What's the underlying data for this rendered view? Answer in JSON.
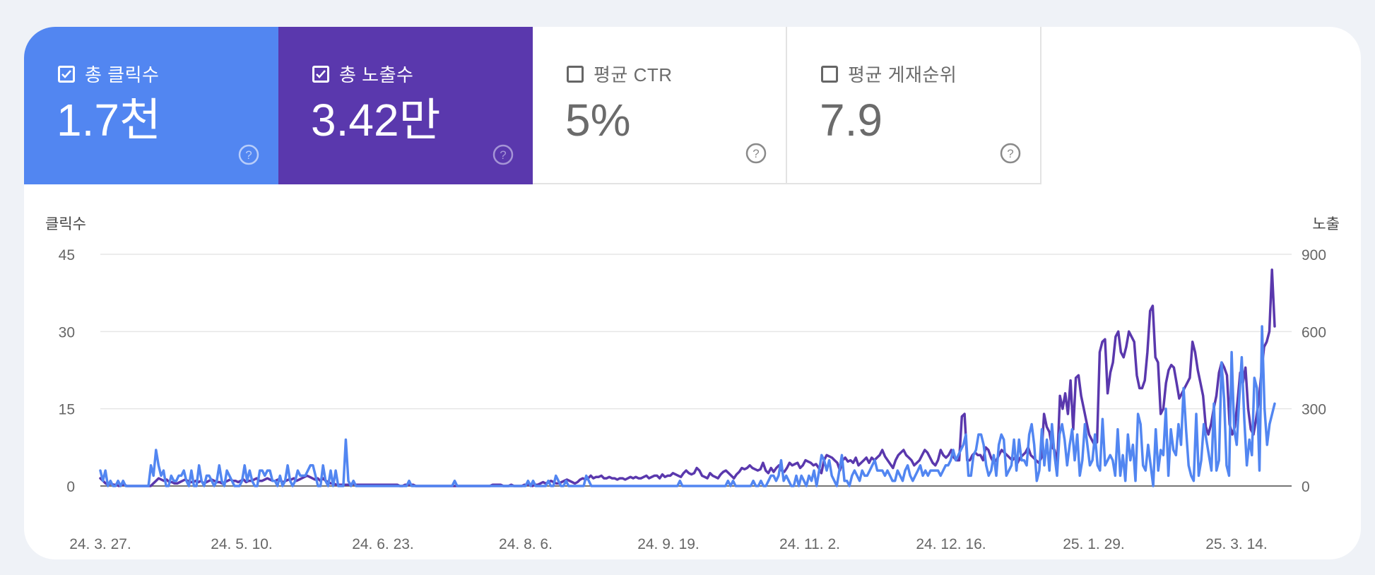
{
  "metrics": [
    {
      "label": "총 클릭수",
      "value": "1.7천",
      "checked": true,
      "color": "#5286f1"
    },
    {
      "label": "총 노출수",
      "value": "3.42만",
      "checked": true,
      "color": "#5a38ad"
    },
    {
      "label": "평균 CTR",
      "value": "5%",
      "checked": false,
      "color": "#ffffff"
    },
    {
      "label": "평균 게재순위",
      "value": "7.9",
      "checked": false,
      "color": "#ffffff"
    }
  ],
  "chart_data": {
    "type": "line",
    "ylabel_left": "클릭수",
    "ylabel_right": "노출",
    "y_left_ticks": [
      "0",
      "15",
      "30",
      "45"
    ],
    "y_right_ticks": [
      "0",
      "300",
      "600",
      "900"
    ],
    "ylim_left": [
      0,
      45
    ],
    "ylim_right": [
      0,
      900
    ],
    "x_tick_labels": [
      "24. 3. 27.",
      "24. 5. 10.",
      "24. 6. 23.",
      "24. 8. 6.",
      "24. 9. 19.",
      "24. 11. 2.",
      "24. 12. 16.",
      "25. 1. 29.",
      "25. 3. 14."
    ],
    "x_range": [
      "24. 3. 27.",
      "25. 3. 23."
    ],
    "grid": true,
    "series": [
      {
        "axis": "right",
        "color": "#5a38ad",
        "values": [
          30,
          20,
          10,
          5,
          10,
          5,
          5,
          0,
          5,
          5,
          0,
          0,
          0,
          0,
          0,
          0,
          0,
          0,
          0,
          0,
          10,
          20,
          30,
          25,
          20,
          25,
          15,
          15,
          10,
          10,
          15,
          20,
          25,
          20,
          15,
          15,
          20,
          15,
          20,
          10,
          15,
          20,
          25,
          20,
          15,
          15,
          10,
          15,
          20,
          25,
          20,
          20,
          15,
          20,
          25,
          15,
          20,
          20,
          25,
          30,
          20,
          20,
          25,
          30,
          25,
          20,
          20,
          25,
          20,
          15,
          20,
          25,
          25,
          30,
          20,
          25,
          30,
          35,
          40,
          35,
          30,
          25,
          30,
          20,
          30,
          20,
          15,
          10,
          10,
          5,
          5,
          5,
          5,
          5,
          5,
          10,
          5,
          5,
          5,
          5,
          5,
          5,
          5,
          5,
          5,
          5,
          5,
          5,
          5,
          5,
          5,
          5,
          5,
          0,
          0,
          5,
          5,
          5,
          5,
          0,
          0,
          0,
          0,
          0,
          0,
          0,
          0,
          0,
          0,
          0,
          0,
          0,
          0,
          0,
          0,
          0,
          0,
          0,
          0,
          0,
          0,
          0,
          0,
          0,
          0,
          0,
          0,
          0,
          5,
          5,
          5,
          5,
          0,
          0,
          0,
          5,
          0,
          0,
          0,
          0,
          5,
          5,
          5,
          0,
          5,
          5,
          10,
          15,
          10,
          15,
          20,
          15,
          10,
          10,
          15,
          20,
          25,
          20,
          15,
          10,
          15,
          25,
          30,
          25,
          30,
          40,
          30,
          35,
          35,
          40,
          30,
          30,
          35,
          30,
          30,
          25,
          30,
          30,
          25,
          30,
          35,
          30,
          35,
          30,
          30,
          35,
          40,
          30,
          35,
          40,
          40,
          30,
          45,
          35,
          40,
          40,
          50,
          45,
          40,
          35,
          50,
          60,
          50,
          45,
          50,
          70,
          60,
          40,
          35,
          30,
          50,
          40,
          35,
          30,
          45,
          55,
          60,
          50,
          40,
          30,
          45,
          55,
          70,
          65,
          70,
          80,
          70,
          65,
          60,
          65,
          90,
          60,
          50,
          70,
          55,
          70,
          80,
          60,
          55,
          70,
          90,
          80,
          85,
          90,
          70,
          80,
          100,
          95,
          90,
          80,
          85,
          70,
          50,
          100,
          120,
          115,
          110,
          100,
          90,
          60,
          100,
          110,
          95,
          100,
          90,
          110,
          80,
          90,
          100,
          110,
          90,
          110,
          100,
          110,
          120,
          140,
          115,
          100,
          85,
          70,
          100,
          120,
          130,
          140,
          120,
          110,
          100,
          80,
          90,
          100,
          120,
          140,
          130,
          110,
          90,
          80,
          100,
          140,
          120,
          110,
          120,
          140,
          110,
          100,
          100,
          270,
          280,
          100,
          100,
          120,
          130,
          120,
          120,
          100,
          150,
          140,
          110,
          90,
          100,
          120,
          140,
          130,
          120,
          110,
          100,
          110,
          90,
          110,
          120,
          130,
          150,
          120,
          110,
          100,
          90,
          110,
          280,
          230,
          210,
          150,
          140,
          90,
          350,
          300,
          360,
          280,
          410,
          220,
          420,
          430,
          350,
          300,
          250,
          200,
          180,
          160,
          170,
          520,
          560,
          570,
          360,
          440,
          480,
          580,
          600,
          520,
          500,
          540,
          600,
          580,
          560,
          430,
          380,
          380,
          410,
          520,
          680,
          700,
          500,
          480,
          280,
          300,
          400,
          450,
          470,
          460,
          400,
          340,
          360,
          380,
          400,
          420,
          560,
          520,
          450,
          400,
          350,
          230,
          200,
          240,
          300,
          350,
          440,
          480,
          460,
          430,
          240,
          200,
          230,
          330,
          440,
          400,
          460,
          300,
          220,
          200,
          260,
          330,
          440,
          540,
          560,
          600,
          840,
          620
        ]
      },
      {
        "axis": "left",
        "color": "#5286f1",
        "values": [
          3,
          1,
          3,
          0,
          1,
          0,
          0,
          1,
          0,
          1,
          0,
          0,
          0,
          0,
          0,
          0,
          0,
          0,
          0,
          0,
          4,
          2,
          7,
          4,
          2,
          3,
          0,
          0,
          2,
          1,
          1,
          2,
          2,
          3,
          1,
          0,
          3,
          0,
          0,
          4,
          1,
          0,
          2,
          2,
          1,
          0,
          1,
          4,
          1,
          0,
          3,
          2,
          1,
          0,
          0,
          0,
          1,
          4,
          1,
          3,
          1,
          0,
          0,
          3,
          3,
          2,
          3,
          3,
          1,
          1,
          0,
          2,
          0,
          1,
          4,
          1,
          0,
          1,
          3,
          2,
          2,
          2,
          3,
          4,
          4,
          2,
          0,
          0,
          4,
          1,
          0,
          3,
          0,
          3,
          0,
          0,
          0,
          9,
          1,
          0,
          1,
          0,
          0,
          0,
          0,
          0,
          0,
          0,
          0,
          0,
          0,
          0,
          0,
          0,
          0,
          0,
          0,
          0,
          0,
          0,
          0,
          0,
          1,
          0,
          0,
          0,
          0,
          0,
          0,
          0,
          0,
          0,
          0,
          0,
          0,
          0,
          0,
          0,
          0,
          0,
          1,
          0,
          0,
          0,
          0,
          0,
          0,
          0,
          0,
          0,
          0,
          0,
          0,
          0,
          0,
          0,
          0,
          0,
          0,
          0,
          0,
          0,
          0,
          0,
          0,
          0,
          0,
          0,
          0,
          1,
          0,
          1,
          0,
          0,
          0,
          0,
          0,
          1,
          0,
          0,
          2,
          1,
          0,
          0,
          1,
          0,
          0,
          0,
          0,
          0,
          0,
          0,
          2,
          1,
          0,
          0,
          0,
          0,
          0,
          0,
          0,
          0,
          0,
          0,
          0,
          0,
          0,
          0,
          0,
          0,
          0,
          0,
          0,
          0,
          0,
          0,
          0,
          0,
          0,
          0,
          0,
          0,
          0,
          0,
          0,
          0,
          0,
          0,
          0,
          1,
          0,
          0,
          0,
          0,
          0,
          0,
          0,
          0,
          0,
          0,
          0,
          0,
          0,
          0,
          0,
          0,
          0,
          0,
          1,
          0,
          1,
          0,
          0,
          0,
          0,
          0,
          0,
          0,
          1,
          0,
          0,
          1,
          0,
          0,
          1,
          2,
          2,
          1,
          2,
          5,
          1,
          2,
          1,
          0,
          0,
          2,
          0,
          2,
          1,
          0,
          2,
          1,
          3,
          0,
          3,
          6,
          5,
          3,
          5,
          2,
          1,
          0,
          3,
          6,
          1,
          1,
          0,
          2,
          3,
          2,
          1,
          3,
          2,
          2,
          3,
          4,
          5,
          3,
          3,
          3,
          2,
          3,
          2,
          1,
          1,
          3,
          2,
          1,
          3,
          4,
          2,
          1,
          2,
          3,
          4,
          2,
          3,
          2,
          3,
          3,
          3,
          3,
          2,
          3,
          4,
          4,
          5,
          7,
          5,
          6,
          7,
          8,
          10,
          2,
          2,
          6,
          7,
          10,
          10,
          8,
          4,
          2,
          3,
          6,
          2,
          8,
          10,
          9,
          2,
          3,
          4,
          9,
          3,
          9,
          5,
          5,
          4,
          10,
          12,
          8,
          1,
          3,
          11,
          4,
          9,
          3,
          12,
          6,
          2,
          10,
          12,
          9,
          4,
          8,
          11,
          5,
          10,
          2,
          5,
          12,
          8,
          4,
          5,
          10,
          4,
          3,
          13,
          4,
          5,
          6,
          5,
          2,
          11,
          2,
          6,
          1,
          10,
          5,
          8,
          1,
          14,
          12,
          4,
          3,
          8,
          4,
          0,
          11,
          3,
          7,
          6,
          15,
          2,
          11,
          7,
          6,
          12,
          8,
          19,
          11,
          4,
          2,
          1,
          14,
          2,
          5,
          12,
          9,
          6,
          3,
          16,
          3,
          5,
          24,
          17,
          4,
          2,
          26,
          11,
          8,
          17,
          25,
          13,
          4,
          9,
          6,
          21,
          19,
          3,
          31,
          15,
          8,
          12,
          14,
          16
        ]
      }
    ]
  },
  "icons": {
    "checkbox": "check-icon",
    "help": "help-circle-icon"
  }
}
